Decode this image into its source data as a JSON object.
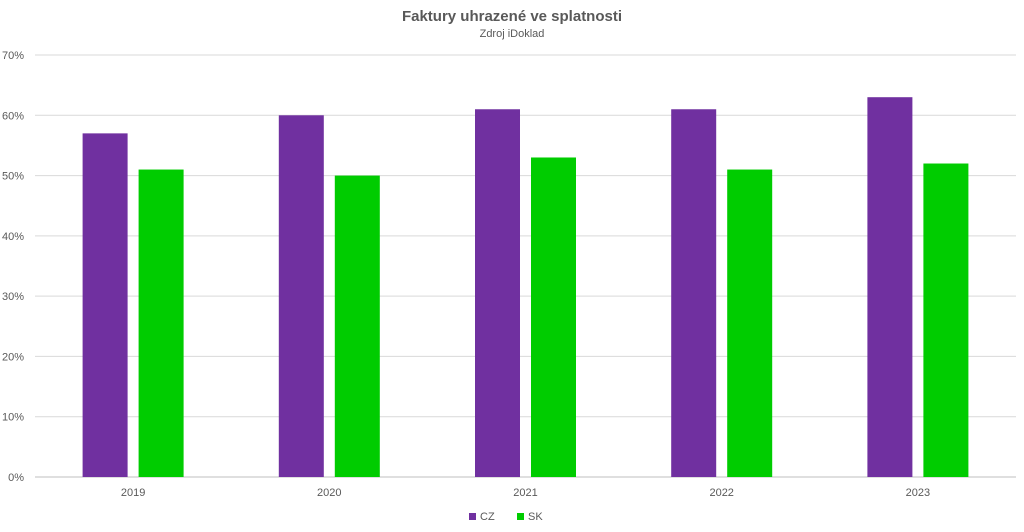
{
  "chart_data": {
    "type": "bar",
    "title": "Faktury uhrazené ve splatnosti",
    "subtitle": "Zdroj iDoklad",
    "xlabel": "",
    "ylabel": "",
    "categories": [
      "2019",
      "2020",
      "2021",
      "2022",
      "2023"
    ],
    "series": [
      {
        "name": "CZ",
        "color": "#7030A0",
        "values": [
          57,
          60,
          61,
          61,
          63
        ]
      },
      {
        "name": "SK",
        "color": "#00CC00",
        "values": [
          51,
          50,
          53,
          51,
          52
        ]
      }
    ],
    "ylim": [
      0,
      70
    ],
    "yticks": [
      "0%",
      "10%",
      "20%",
      "30%",
      "40%",
      "50%",
      "60%",
      "70%"
    ],
    "grid": true,
    "legend_position": "bottom"
  }
}
